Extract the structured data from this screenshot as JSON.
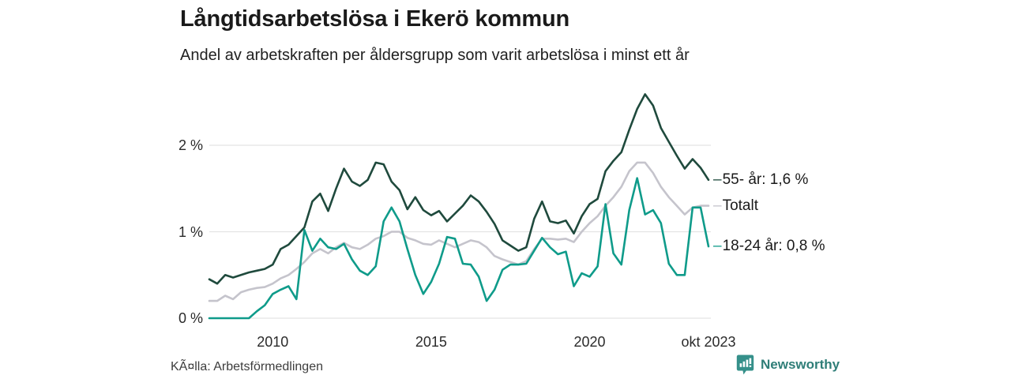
{
  "header": {
    "title": "Långtidsarbetslösa i Ekerö kommun",
    "subtitle": "Andel av arbetskraften per åldersgrupp som varit arbetslösa i minst ett år"
  },
  "footer": {
    "source": "KÃ¤lla: Arbetsförmedlingen",
    "brand": "Newsworthy"
  },
  "colors": {
    "series_55": "#1f4a3d",
    "series_total": "#c5c4cc",
    "series_1824": "#0f9b8a",
    "grid": "#e3e3e3",
    "brand_teal": "#35908a",
    "brand_text": "#2f7e78",
    "text": "#1a1a1a"
  },
  "chart_data": {
    "type": "line",
    "title": "Långtidsarbetslösa i Ekerö kommun",
    "subtitle": "Andel av arbetskraften per åldersgrupp som varit arbetslösa i minst ett år",
    "xlabel": "",
    "ylabel": "",
    "xlim": [
      2008,
      2023.75
    ],
    "ylim": [
      0,
      2.7
    ],
    "grid": "horizontal",
    "legend_position": "right-end-labels",
    "label_dash": "–",
    "x": [
      2008,
      2008.25,
      2008.5,
      2008.75,
      2009,
      2009.25,
      2009.5,
      2009.75,
      2010,
      2010.25,
      2010.5,
      2010.75,
      2011,
      2011.25,
      2011.5,
      2011.75,
      2012,
      2012.25,
      2012.5,
      2012.75,
      2013,
      2013.25,
      2013.5,
      2013.75,
      2014,
      2014.25,
      2014.5,
      2014.75,
      2015,
      2015.25,
      2015.5,
      2015.75,
      2016,
      2016.25,
      2016.5,
      2016.75,
      2017,
      2017.25,
      2017.5,
      2017.75,
      2018,
      2018.25,
      2018.5,
      2018.75,
      2019,
      2019.25,
      2019.5,
      2019.75,
      2020,
      2020.25,
      2020.5,
      2020.75,
      2021,
      2021.25,
      2021.5,
      2021.75,
      2022,
      2022.25,
      2022.5,
      2022.75,
      2023,
      2023.25,
      2023.5,
      2023.75
    ],
    "series": [
      {
        "name": "Totalt",
        "end_label": "Totalt",
        "end_value": null,
        "color": "#c5c4cc",
        "values": [
          0.2,
          0.2,
          0.26,
          0.22,
          0.3,
          0.33,
          0.35,
          0.36,
          0.4,
          0.46,
          0.5,
          0.57,
          0.65,
          0.75,
          0.8,
          0.75,
          0.82,
          0.87,
          0.82,
          0.8,
          0.85,
          0.92,
          0.95,
          1.0,
          1.0,
          0.93,
          0.9,
          0.86,
          0.85,
          0.9,
          0.86,
          0.82,
          0.86,
          0.9,
          0.88,
          0.82,
          0.72,
          0.68,
          0.65,
          0.62,
          0.66,
          0.8,
          0.92,
          0.92,
          0.91,
          0.92,
          0.88,
          1.0,
          1.1,
          1.18,
          1.3,
          1.4,
          1.52,
          1.7,
          1.8,
          1.8,
          1.68,
          1.52,
          1.4,
          1.3,
          1.2,
          1.28,
          1.3,
          1.3
        ]
      },
      {
        "name": "55- år",
        "end_label": "55- år: 1,6 %",
        "end_value": "1,6 %",
        "color": "#1f4a3d",
        "values": [
          0.45,
          0.4,
          0.5,
          0.47,
          0.5,
          0.53,
          0.55,
          0.57,
          0.62,
          0.8,
          0.85,
          0.95,
          1.05,
          1.35,
          1.44,
          1.24,
          1.5,
          1.73,
          1.58,
          1.53,
          1.6,
          1.8,
          1.78,
          1.58,
          1.48,
          1.26,
          1.4,
          1.25,
          1.19,
          1.24,
          1.12,
          1.21,
          1.3,
          1.42,
          1.35,
          1.23,
          1.09,
          0.9,
          0.84,
          0.78,
          0.82,
          1.15,
          1.35,
          1.12,
          1.1,
          1.13,
          0.98,
          1.18,
          1.32,
          1.38,
          1.7,
          1.82,
          1.92,
          2.18,
          2.42,
          2.59,
          2.46,
          2.2,
          2.04,
          1.88,
          1.73,
          1.84,
          1.74,
          1.6
        ]
      },
      {
        "name": "18-24 år",
        "end_label": "18-24 år: 0,8 %",
        "end_value": "0,8 %",
        "color": "#0f9b8a",
        "values": [
          0.0,
          0.0,
          0.0,
          0.0,
          0.0,
          0.0,
          0.08,
          0.15,
          0.28,
          0.33,
          0.37,
          0.22,
          1.02,
          0.78,
          0.92,
          0.82,
          0.8,
          0.86,
          0.68,
          0.55,
          0.5,
          0.6,
          1.12,
          1.28,
          1.12,
          0.8,
          0.5,
          0.28,
          0.42,
          0.63,
          0.94,
          0.92,
          0.63,
          0.62,
          0.48,
          0.2,
          0.33,
          0.56,
          0.62,
          0.62,
          0.63,
          0.78,
          0.93,
          0.82,
          0.74,
          0.77,
          0.37,
          0.52,
          0.48,
          0.6,
          1.32,
          0.75,
          0.62,
          1.25,
          1.62,
          1.2,
          1.25,
          1.1,
          0.63,
          0.5,
          0.5,
          1.28,
          1.28,
          0.83
        ]
      }
    ],
    "xticks": [
      {
        "value": 2010,
        "label": "2010"
      },
      {
        "value": 2015,
        "label": "2015"
      },
      {
        "value": 2020,
        "label": "2020"
      },
      {
        "value": 2023.75,
        "label": "okt 2023"
      }
    ],
    "yticks": [
      {
        "value": 0,
        "label": "0 %"
      },
      {
        "value": 1,
        "label": "1 %"
      },
      {
        "value": 2,
        "label": "2 %"
      }
    ]
  }
}
